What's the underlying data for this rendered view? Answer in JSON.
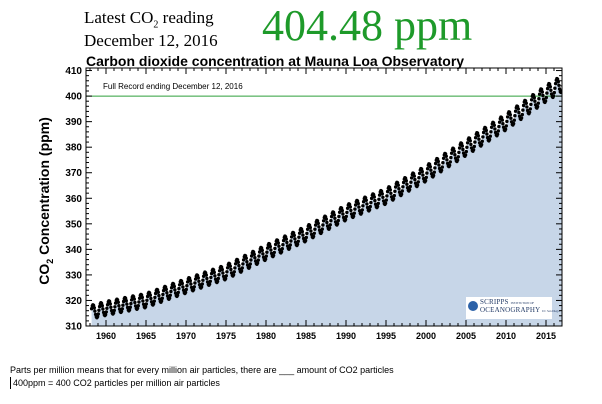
{
  "header": {
    "latest_prefix": "Latest CO",
    "latest_sub": "2",
    "latest_suffix": " reading",
    "reading_date": "December 12, 2016",
    "reading_value": "404.48 ppm",
    "chart_title": "Carbon dioxide concentration at Mauna Loa Observatory"
  },
  "colors": {
    "accent_green": "#1e9a2a",
    "area_fill": "#c7d6e8",
    "reference_line": "#2e9f3a"
  },
  "logo": {
    "line1": "SCRIPPS",
    "line1_small": "INSTITUTION OF",
    "line2": "OCEANOGRAPHY",
    "line2_small": "UC San Diego"
  },
  "notes": {
    "line1": "Parts per million means that for every million air particles, there are ___ amount of CO2 particles",
    "line2": "400ppm = 400 CO2 particles per million air particles"
  },
  "chart_data": {
    "type": "scatter",
    "title": "Carbon dioxide concentration at Mauna Loa Observatory",
    "ylabel_main": "CO",
    "ylabel_sub": "2",
    "ylabel_rest": " Concentration (ppm)",
    "xlabel": "",
    "xlim": [
      1957.5,
      2017.0
    ],
    "ylim": [
      310,
      411
    ],
    "xticks": [
      1960,
      1965,
      1970,
      1975,
      1980,
      1985,
      1990,
      1995,
      2000,
      2005,
      2010,
      2015
    ],
    "yticks": [
      310,
      320,
      330,
      340,
      350,
      360,
      370,
      380,
      390,
      400,
      410
    ],
    "reference_line": {
      "y": 400,
      "label": "Full Record ending December 12, 2016"
    },
    "grid": false,
    "area_fill": true,
    "latest_value": 404.48,
    "series": [
      {
        "trend_x": [
          1958,
          1960,
          1965,
          1970,
          1975,
          1980,
          1985,
          1990,
          1995,
          2000,
          2005,
          2010,
          2015,
          2016.95
        ],
        "trend_y": [
          315.3,
          316.9,
          320.0,
          325.7,
          331.1,
          338.8,
          346.1,
          354.4,
          360.8,
          369.7,
          379.8,
          389.9,
          401.0,
          404.8
        ],
        "seasonal_amplitude": 3.2
      }
    ]
  }
}
